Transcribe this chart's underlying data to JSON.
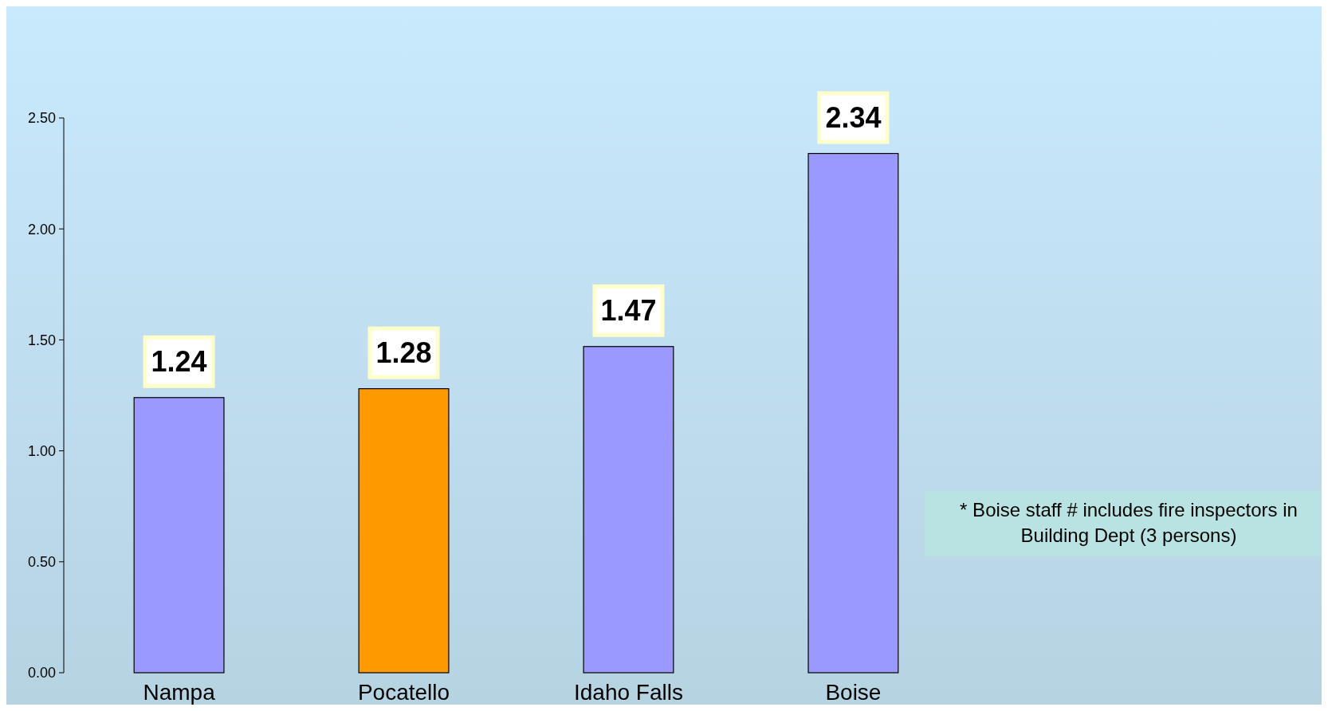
{
  "chart_data": {
    "type": "bar",
    "categories": [
      "Nampa",
      "Pocatello",
      "Idaho Falls",
      "Boise"
    ],
    "values": [
      1.24,
      1.28,
      1.47,
      2.34
    ],
    "colors": [
      "#9999ff",
      "#ff9900",
      "#9999ff",
      "#9999ff"
    ],
    "ylim": [
      0,
      2.5
    ],
    "yticks": [
      {
        "value": 0,
        "label": "0.00"
      },
      {
        "value": 0.5,
        "label": "0.50"
      },
      {
        "value": 1,
        "label": "1.00"
      },
      {
        "value": 1.5,
        "label": "1.50"
      },
      {
        "value": 2,
        "label": "2.00"
      },
      {
        "value": 2.5,
        "label": "2.50"
      }
    ],
    "data_labels": true,
    "grid": false,
    "annotations": [
      "* Boise staff # includes fire inspectors in Building Dept (3 persons)"
    ]
  }
}
